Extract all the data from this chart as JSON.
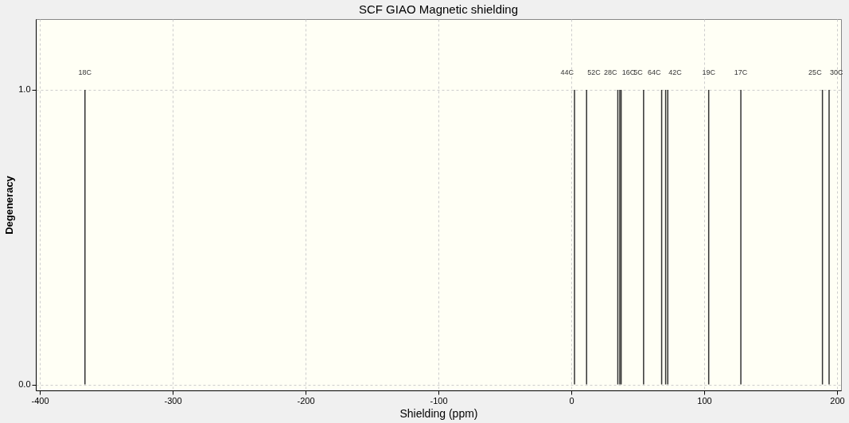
{
  "chart_data": {
    "type": "bar",
    "title": "SCF GIAO Magnetic shielding",
    "xlabel": "Shielding (ppm)",
    "ylabel": "Degeneracy",
    "x": [
      -366,
      2.4,
      11.5,
      35,
      36.5,
      37.5,
      54.4,
      68,
      71,
      72.6,
      103.4,
      127.6,
      189,
      194
    ],
    "series": [
      {
        "color": "#333333",
        "values": [
          1,
          1,
          1,
          1,
          1,
          1,
          1,
          1,
          1,
          1,
          1,
          1,
          1,
          1
        ]
      }
    ],
    "xlim": [
      -400,
      200
    ],
    "xticks": [
      -400,
      -300,
      -200,
      -100,
      0,
      100,
      200
    ],
    "ylim": [
      -0.02,
      1.24
    ],
    "yticks": [
      {
        "value": 0,
        "label": "0.0"
      },
      {
        "value": 1,
        "label": "1.0"
      }
    ],
    "grid": true,
    "annotations": [
      {
        "text": "18C",
        "x": -366,
        "y": 1
      },
      {
        "text": "44C",
        "x": 2.4,
        "y": 1
      },
      {
        "text": "52C",
        "x": 11.5,
        "y": 1
      },
      {
        "text": "28C",
        "x": 35,
        "y": 1
      },
      {
        "text": "16C",
        "x": 37.5,
        "y": 1
      },
      {
        "text": "5C",
        "x": 54.4,
        "y": 1
      },
      {
        "text": "64C",
        "x": 68,
        "y": 1
      },
      {
        "text": "42C",
        "x": 72.6,
        "y": 1
      },
      {
        "text": "19C",
        "x": 103.4,
        "y": 1
      },
      {
        "text": "17C",
        "x": 127.6,
        "y": 1
      },
      {
        "text": "25C",
        "x": 189,
        "y": 1
      },
      {
        "text": "30C",
        "x": 194,
        "y": 1
      }
    ]
  }
}
